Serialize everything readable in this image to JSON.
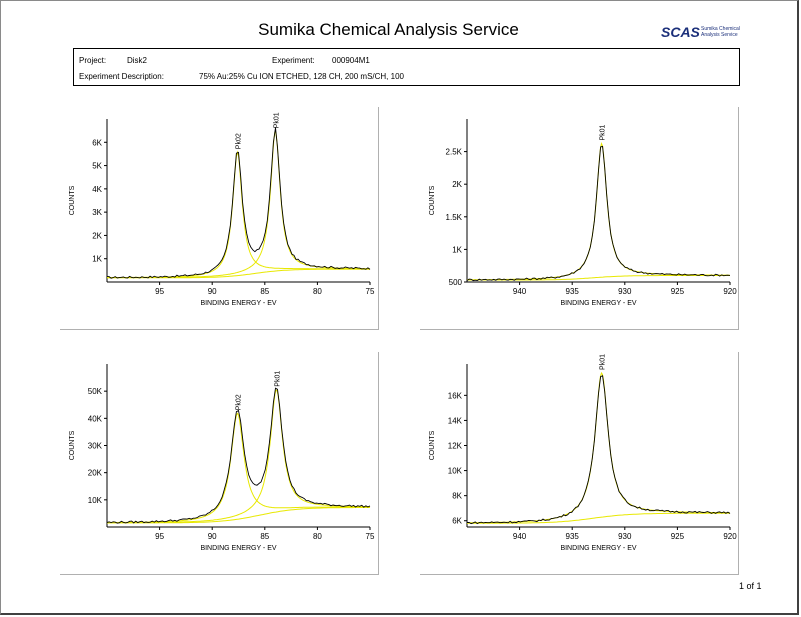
{
  "header": {
    "title": "Sumika Chemical Analysis Service",
    "logo_mark": "SCAS",
    "logo_text_line1": "Sumika Chemical",
    "logo_text_line2": "Analysis Service",
    "logo_color": "#1b2f7a"
  },
  "info": {
    "project_label": "Project:",
    "project_value": "Disk2",
    "experiment_label": "Experiment:",
    "experiment_value": "000904M1",
    "description_label": "Experiment Description:",
    "description_value": "75% Au:25% Cu ION ETCHED, 128 CH, 200 mS/CH, 100"
  },
  "footer": {
    "page": "1 of 1"
  },
  "colors": {
    "fit": "#e8e800",
    "data": "#000000"
  },
  "chart_data": [
    {
      "type": "line",
      "xlabel": "BINDING ENERGY - EV",
      "ylabel": "COUNTS",
      "xlim": [
        100,
        75
      ],
      "xticks": [
        95,
        90,
        85,
        80,
        75
      ],
      "xtick_labels": [
        "95",
        "90",
        "85",
        "80",
        "75"
      ],
      "ylim": [
        0,
        7000
      ],
      "yticks": [
        1000,
        2000,
        3000,
        4000,
        5000,
        6000
      ],
      "ytick_labels": [
        "1K",
        "2K",
        "3K",
        "4K",
        "5K",
        "6K"
      ],
      "baseline": 500,
      "bg_start": 550,
      "bg_end": 180,
      "step_center": 86,
      "step_width": 1.5,
      "peaks": [
        {
          "label": "Pk02",
          "center": 87.6,
          "height": 5300,
          "width": 0.55
        },
        {
          "label": "Pk01",
          "center": 84.0,
          "height": 6000,
          "width": 0.55
        }
      ]
    },
    {
      "type": "line",
      "xlabel": "BINDING ENERGY - EV",
      "ylabel": "COUNTS",
      "xlim": [
        945,
        920
      ],
      "xticks": [
        940,
        935,
        930,
        925,
        920
      ],
      "xtick_labels": [
        "940",
        "935",
        "930",
        "925",
        "920"
      ],
      "ylim": [
        500,
        3000
      ],
      "yticks": [
        500,
        1000,
        1500,
        2000,
        2500
      ],
      "ytick_labels": [
        "500",
        "1K",
        "1.5K",
        "2K",
        "2.5K"
      ],
      "bg_start": 600,
      "bg_end": 530,
      "step_center": 933,
      "step_width": 1.5,
      "peaks": [
        {
          "label": "Pk01",
          "center": 932.2,
          "height": 2050,
          "width": 0.6
        }
      ]
    },
    {
      "type": "line",
      "xlabel": "BINDING ENERGY - EV",
      "ylabel": "COUNTS",
      "xlim": [
        100,
        75
      ],
      "xticks": [
        95,
        90,
        85,
        80,
        75
      ],
      "xtick_labels": [
        "95",
        "90",
        "85",
        "80",
        "75"
      ],
      "ylim": [
        0,
        60000
      ],
      "yticks": [
        10000,
        20000,
        30000,
        40000,
        50000
      ],
      "ytick_labels": [
        "10K",
        "20K",
        "30K",
        "40K",
        "50K"
      ],
      "bg_start": 7200,
      "bg_end": 1500,
      "step_center": 85.5,
      "step_width": 1.8,
      "peaks": [
        {
          "label": "Pk02",
          "center": 87.6,
          "height": 39000,
          "width": 0.75
        },
        {
          "label": "Pk01",
          "center": 83.9,
          "height": 45000,
          "width": 0.7
        }
      ]
    },
    {
      "type": "line",
      "xlabel": "BINDING ENERGY - EV",
      "ylabel": "COUNTS",
      "xlim": [
        945,
        920
      ],
      "xticks": [
        940,
        935,
        930,
        925,
        920
      ],
      "xtick_labels": [
        "940",
        "935",
        "930",
        "925",
        "920"
      ],
      "ylim": [
        5500,
        18500
      ],
      "yticks": [
        6000,
        8000,
        10000,
        12000,
        14000,
        16000
      ],
      "ytick_labels": [
        "6K",
        "8K",
        "10K",
        "12K",
        "14K",
        "16K"
      ],
      "bg_start": 6600,
      "bg_end": 5800,
      "step_center": 933,
      "step_width": 1.8,
      "peaks": [
        {
          "label": "Pk01",
          "center": 932.2,
          "height": 11500,
          "width": 0.75
        }
      ]
    }
  ]
}
